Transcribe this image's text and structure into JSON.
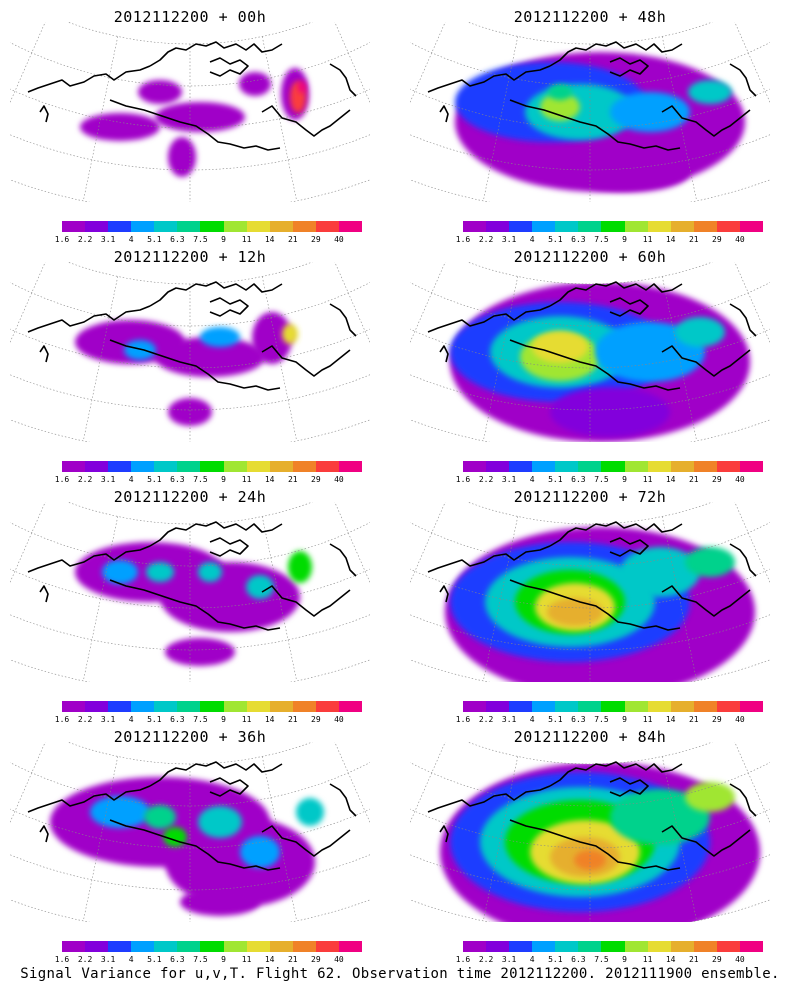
{
  "panels": [
    {
      "title": "2012112200 + 00h",
      "level": 0
    },
    {
      "title": "2012112200 + 48h",
      "level": 4
    },
    {
      "title": "2012112200 + 12h",
      "level": 1
    },
    {
      "title": "2012112200 + 60h",
      "level": 5
    },
    {
      "title": "2012112200 + 24h",
      "level": 2
    },
    {
      "title": "2012112200 + 72h",
      "level": 6
    },
    {
      "title": "2012112200 + 36h",
      "level": 3
    },
    {
      "title": "2012112200 + 84h",
      "level": 7
    }
  ],
  "colorbar": {
    "colors": [
      "#a000c8",
      "#8200dc",
      "#1e3cff",
      "#00a0ff",
      "#00c8c8",
      "#00d28c",
      "#00dc00",
      "#a0e632",
      "#e6dc32",
      "#e6af2d",
      "#f08228",
      "#fa3c3c",
      "#f00082"
    ],
    "labels": [
      "1.6",
      "2.2",
      "3.1",
      "4",
      "5.1",
      "6.3",
      "7.5",
      "9",
      "11",
      "14",
      "21",
      "29",
      "40"
    ]
  },
  "caption": "Signal Variance for u,v,T. Flight 62. Observation time 2012112200. 2012111900 ensemble."
}
